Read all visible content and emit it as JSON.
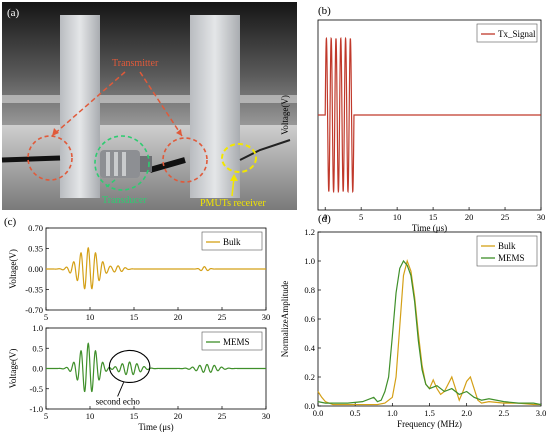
{
  "panels": {
    "a": "(a)",
    "b": "(b)",
    "c": "(c)",
    "d": "(d)"
  },
  "photo": {
    "transmitter_label": "Transmitter",
    "transducer_label": "Transducer",
    "receiver_label": "PMUTs receiver",
    "colors": {
      "transmitter": "#e05a3a",
      "transducer": "#2ecc71",
      "receiver": "#f2e600"
    }
  },
  "chart_data": [
    {
      "id": "b",
      "type": "line",
      "title": "",
      "xlabel": "Time (μs)",
      "ylabel": "Voltage(V)",
      "xlim": [
        -1,
        30
      ],
      "ylim": [
        -3.6,
        3.6
      ],
      "xticks": [
        0,
        5,
        10,
        15,
        20,
        25,
        30
      ],
      "xtick_labels": [
        "0",
        "5",
        "10",
        "15",
        "20",
        "25",
        "30"
      ],
      "yticks": [],
      "grid": false,
      "legend": "top-right",
      "series": [
        {
          "name": "Tx_Signal",
          "color": "#c0392b",
          "kind": "burst",
          "start": 0,
          "end": 4,
          "cycles": 6,
          "amplitude": 2.9
        }
      ]
    },
    {
      "id": "c_bulk",
      "type": "line",
      "xlabel": "",
      "ylabel": "Voltage(V)",
      "xlim": [
        5,
        30
      ],
      "ylim": [
        -0.7,
        0.7
      ],
      "xticks": [
        5,
        10,
        15,
        20,
        25,
        30
      ],
      "xtick_labels": [
        "5",
        "10",
        "15",
        "20",
        "25",
        "30"
      ],
      "yticks": [
        -0.7,
        -0.35,
        0.0,
        0.35,
        0.7
      ],
      "ytick_labels": [
        "-0.70",
        "-0.35",
        "0.00",
        "0.35",
        "0.70"
      ],
      "grid": false,
      "legend": "top-right",
      "series": [
        {
          "name": "Bulk",
          "color": "#d4a017",
          "kind": "echo",
          "packets": [
            {
              "center": 9.8,
              "width": 1.6,
              "amp": 0.36,
              "freq": 1.2
            },
            {
              "center": 13.2,
              "width": 0.9,
              "amp": 0.05,
              "freq": 1.2
            },
            {
              "center": 23.0,
              "width": 0.6,
              "amp": 0.04,
              "freq": 1.2
            }
          ]
        }
      ]
    },
    {
      "id": "c_mems",
      "type": "line",
      "xlabel": "Time (μs)",
      "ylabel": "Voltage(V)",
      "xlim": [
        5,
        30
      ],
      "ylim": [
        -1.0,
        1.0
      ],
      "xticks": [
        5,
        10,
        15,
        20,
        25,
        30
      ],
      "xtick_labels": [
        "5",
        "10",
        "15",
        "20",
        "25",
        "30"
      ],
      "yticks": [
        -1.0,
        -0.5,
        0.0,
        0.5,
        1.0
      ],
      "ytick_labels": [
        "-1.0",
        "-0.5",
        "0.0",
        "0.5",
        "1.0"
      ],
      "grid": false,
      "legend": "top-right",
      "annotation": "second echo",
      "series": [
        {
          "name": "MEMS",
          "color": "#3f8f2a",
          "kind": "echo",
          "packets": [
            {
              "center": 9.8,
              "width": 1.4,
              "amp": 0.62,
              "freq": 1.2
            },
            {
              "center": 14.5,
              "width": 1.5,
              "amp": 0.16,
              "freq": 1.2
            },
            {
              "center": 23.3,
              "width": 1.6,
              "amp": 0.1,
              "freq": 1.2
            }
          ]
        }
      ]
    },
    {
      "id": "d",
      "type": "line",
      "xlabel": "Frequency (MHz)",
      "ylabel": "NormalizeAmplitude",
      "xlim": [
        0,
        3.0
      ],
      "ylim": [
        0,
        1.2
      ],
      "xticks": [
        0,
        0.5,
        1.0,
        1.5,
        2.0,
        2.5,
        3.0
      ],
      "xtick_labels": [
        "0.0",
        "0.5",
        "1.0",
        "1.5",
        "2.0",
        "2.5",
        "3.0"
      ],
      "yticks": [
        0,
        0.2,
        0.4,
        0.6,
        0.8,
        1.0,
        1.2
      ],
      "ytick_labels": [
        "0.0",
        "0.2",
        "0.4",
        "0.6",
        "0.8",
        "1.0",
        "1.2"
      ],
      "grid": false,
      "legend": "top-right",
      "series": [
        {
          "name": "Bulk",
          "color": "#d4a017",
          "x": [
            0.0,
            0.05,
            0.1,
            0.2,
            0.4,
            0.6,
            0.8,
            0.9,
            1.0,
            1.05,
            1.1,
            1.15,
            1.2,
            1.25,
            1.3,
            1.35,
            1.4,
            1.45,
            1.5,
            1.55,
            1.6,
            1.65,
            1.7,
            1.8,
            1.85,
            1.9,
            1.95,
            2.0,
            2.05,
            2.1,
            2.15,
            2.2,
            2.3,
            2.5,
            2.7,
            2.9,
            3.0
          ],
          "y": [
            0.1,
            0.06,
            0.03,
            0.01,
            0.01,
            0.01,
            0.01,
            0.02,
            0.06,
            0.2,
            0.55,
            0.9,
            1.0,
            0.93,
            0.75,
            0.5,
            0.28,
            0.15,
            0.12,
            0.18,
            0.12,
            0.08,
            0.1,
            0.2,
            0.12,
            0.04,
            0.1,
            0.17,
            0.2,
            0.12,
            0.04,
            0.02,
            0.03,
            0.02,
            0.02,
            0.01,
            0.01
          ]
        },
        {
          "name": "MEMS",
          "color": "#3f8f2a",
          "x": [
            0.0,
            0.1,
            0.2,
            0.4,
            0.6,
            0.75,
            0.8,
            0.85,
            0.9,
            0.95,
            1.0,
            1.05,
            1.1,
            1.15,
            1.2,
            1.25,
            1.3,
            1.35,
            1.4,
            1.45,
            1.5,
            1.6,
            1.7,
            1.8,
            1.9,
            2.0,
            2.1,
            2.2,
            2.3,
            2.5,
            2.7,
            2.9,
            3.0
          ],
          "y": [
            0.03,
            0.02,
            0.02,
            0.02,
            0.03,
            0.06,
            0.03,
            0.04,
            0.1,
            0.2,
            0.48,
            0.78,
            0.95,
            1.0,
            0.97,
            0.9,
            0.72,
            0.45,
            0.25,
            0.15,
            0.12,
            0.14,
            0.1,
            0.12,
            0.08,
            0.1,
            0.06,
            0.04,
            0.05,
            0.03,
            0.02,
            0.02,
            0.01
          ]
        }
      ]
    }
  ]
}
